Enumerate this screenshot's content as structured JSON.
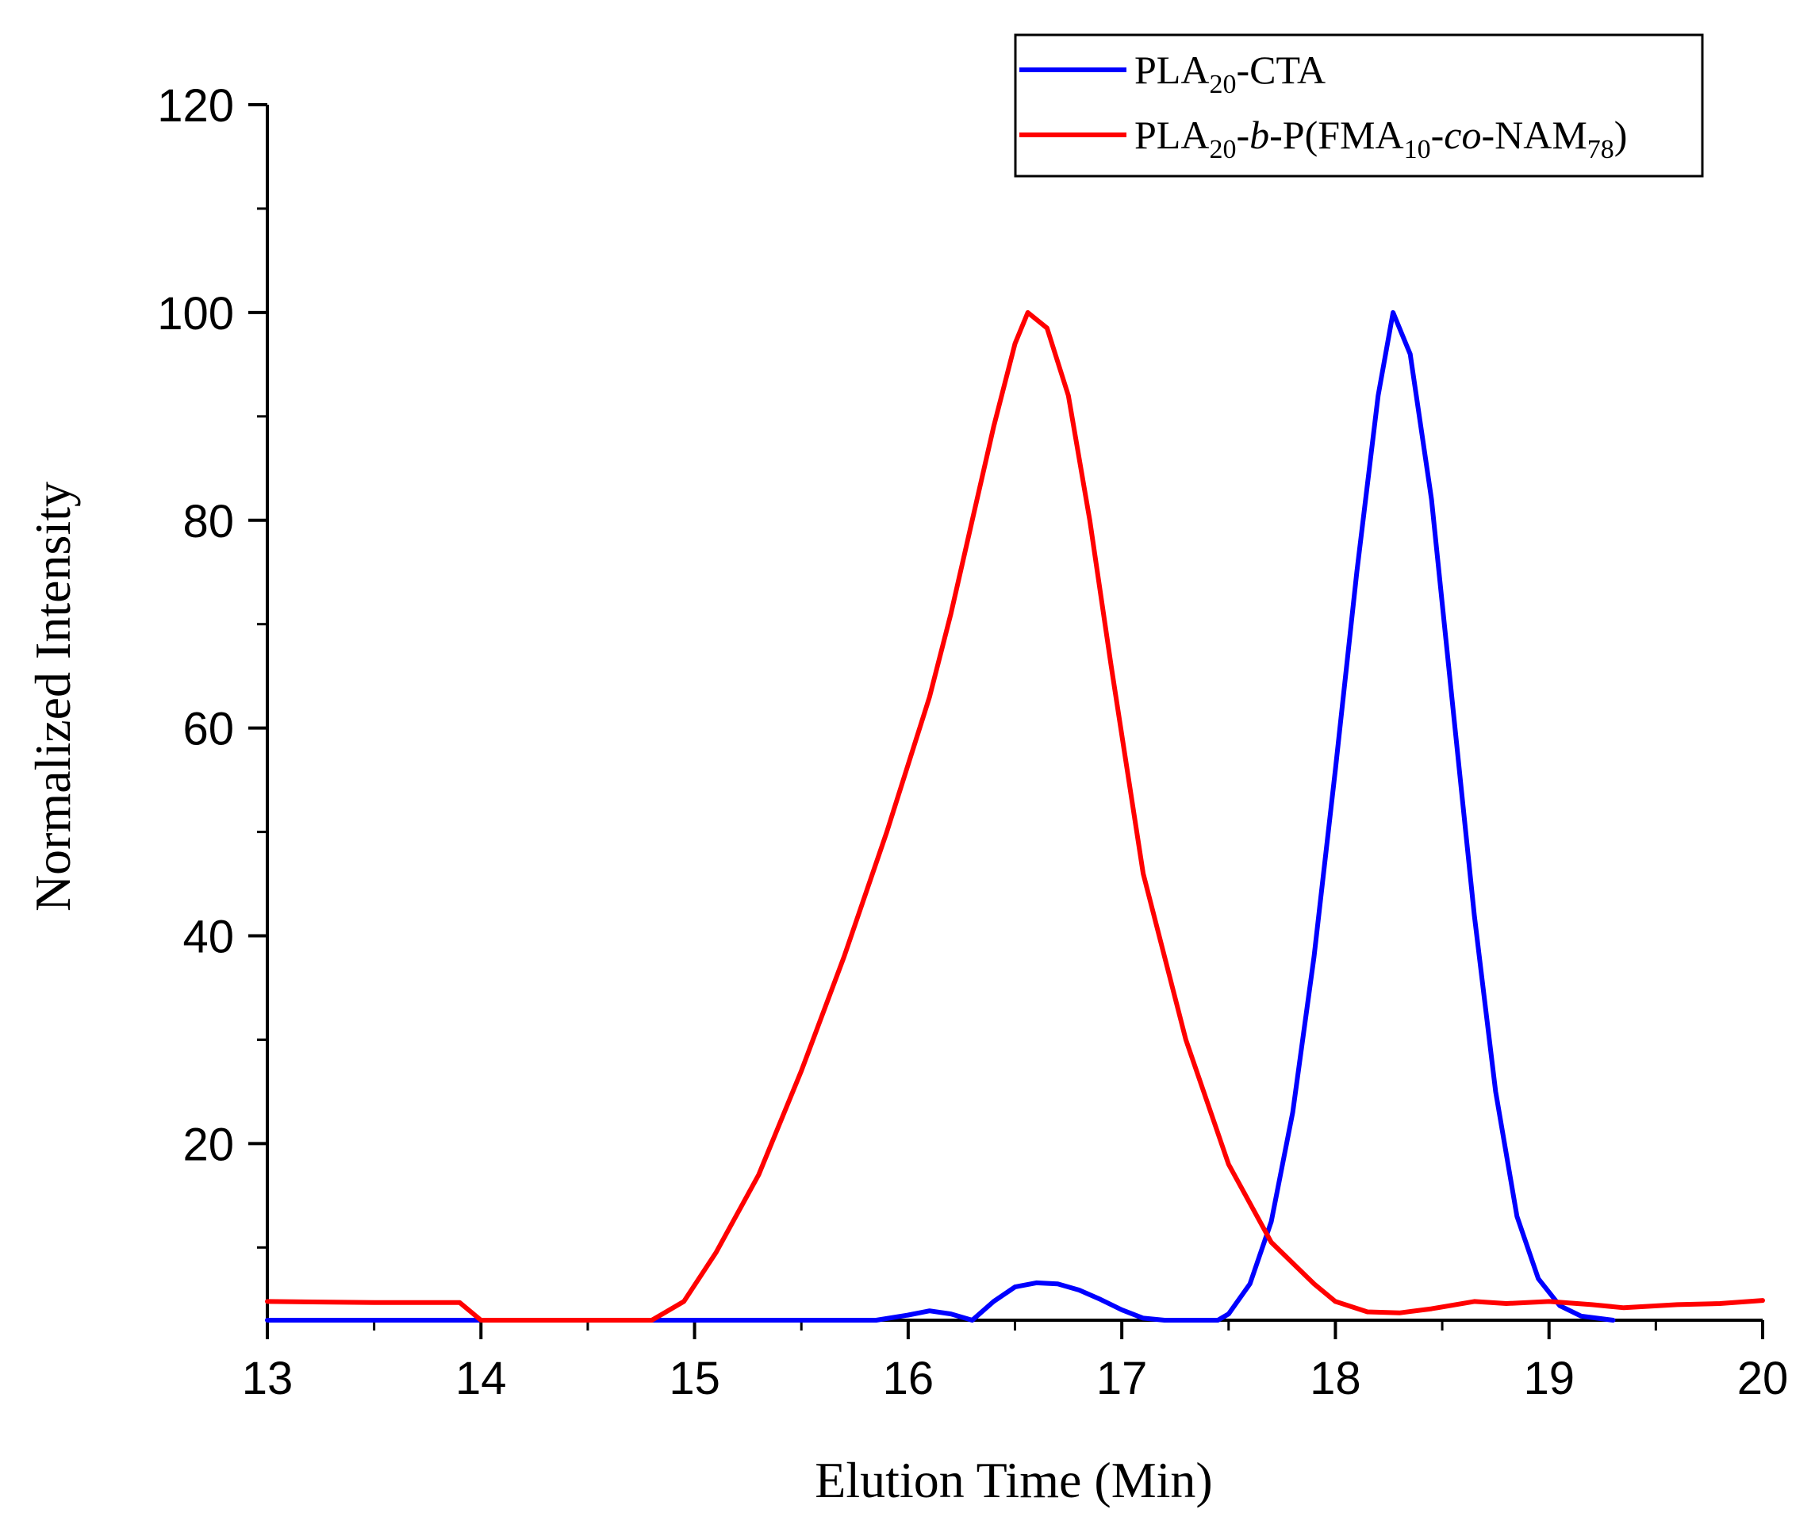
{
  "chart_data": {
    "type": "line",
    "xlabel": "Elution Time (Min)",
    "ylabel": "Normalized Intensity",
    "xlim": [
      13,
      20
    ],
    "ylim": [
      3,
      120
    ],
    "x_ticks": [
      13,
      14,
      15,
      16,
      17,
      18,
      19,
      20
    ],
    "y_ticks": [
      20,
      40,
      60,
      80,
      100,
      120
    ],
    "legend_position": "top-right",
    "colors": {
      "blue": "#0000ff",
      "red": "#ff0000"
    },
    "series": [
      {
        "name": "PLA20-CTA",
        "legend": {
          "a": "PLA",
          "a_sub": "20",
          "b": "-CTA"
        },
        "color": "#0000ff",
        "points": [
          [
            13.0,
            3.0
          ],
          [
            15.35,
            3.0
          ],
          [
            15.85,
            3.0
          ],
          [
            16.0,
            3.5
          ],
          [
            16.1,
            3.9
          ],
          [
            16.2,
            3.6
          ],
          [
            16.3,
            3.0
          ],
          [
            16.4,
            4.8
          ],
          [
            16.5,
            6.2
          ],
          [
            16.6,
            6.6
          ],
          [
            16.7,
            6.5
          ],
          [
            16.8,
            5.9
          ],
          [
            16.9,
            5.0
          ],
          [
            17.0,
            4.0
          ],
          [
            17.1,
            3.2
          ],
          [
            17.2,
            3.0
          ],
          [
            17.3,
            3.0
          ],
          [
            17.45,
            3.0
          ],
          [
            17.5,
            3.6
          ],
          [
            17.6,
            6.5
          ],
          [
            17.7,
            12.5
          ],
          [
            17.8,
            23.0
          ],
          [
            17.9,
            38.0
          ],
          [
            18.0,
            56.0
          ],
          [
            18.1,
            75.0
          ],
          [
            18.2,
            92.0
          ],
          [
            18.27,
            100.0
          ],
          [
            18.35,
            96.0
          ],
          [
            18.45,
            82.0
          ],
          [
            18.55,
            62.0
          ],
          [
            18.65,
            42.0
          ],
          [
            18.75,
            25.0
          ],
          [
            18.85,
            13.0
          ],
          [
            18.95,
            7.0
          ],
          [
            19.05,
            4.4
          ],
          [
            19.15,
            3.4
          ],
          [
            19.3,
            3.0
          ]
        ]
      },
      {
        "name": "PLA20-b-P(FMA10-co-NAM78)",
        "legend": {
          "a": "PLA",
          "a_sub": "20",
          "b": "-",
          "b_italic": "b",
          "c": "-P(FMA",
          "c_sub": "10",
          "d": "-",
          "d_italic": "co",
          "e": "-NAM",
          "e_sub": "78",
          "f": ")"
        },
        "color": "#ff0000",
        "points": [
          [
            13.0,
            4.8
          ],
          [
            13.5,
            4.7
          ],
          [
            13.9,
            4.7
          ],
          [
            14.0,
            3.0
          ],
          [
            14.5,
            3.0
          ],
          [
            14.8,
            3.0
          ],
          [
            14.95,
            4.8
          ],
          [
            15.1,
            9.5
          ],
          [
            15.3,
            17.0
          ],
          [
            15.5,
            27.0
          ],
          [
            15.7,
            38.0
          ],
          [
            15.9,
            50.0
          ],
          [
            16.1,
            63.0
          ],
          [
            16.2,
            71.0
          ],
          [
            16.3,
            80.0
          ],
          [
            16.4,
            89.0
          ],
          [
            16.5,
            97.0
          ],
          [
            16.56,
            100.0
          ],
          [
            16.65,
            98.5
          ],
          [
            16.75,
            92.0
          ],
          [
            16.85,
            80.0
          ],
          [
            16.95,
            66.0
          ],
          [
            17.1,
            46.0
          ],
          [
            17.3,
            30.0
          ],
          [
            17.5,
            18.0
          ],
          [
            17.7,
            10.5
          ],
          [
            17.9,
            6.5
          ],
          [
            18.0,
            4.8
          ],
          [
            18.15,
            3.8
          ],
          [
            18.3,
            3.7
          ],
          [
            18.45,
            4.1
          ],
          [
            18.65,
            4.8
          ],
          [
            18.8,
            4.6
          ],
          [
            19.0,
            4.8
          ],
          [
            19.2,
            4.5
          ],
          [
            19.35,
            4.2
          ],
          [
            19.6,
            4.5
          ],
          [
            19.8,
            4.6
          ],
          [
            20.0,
            4.9
          ]
        ]
      }
    ]
  }
}
